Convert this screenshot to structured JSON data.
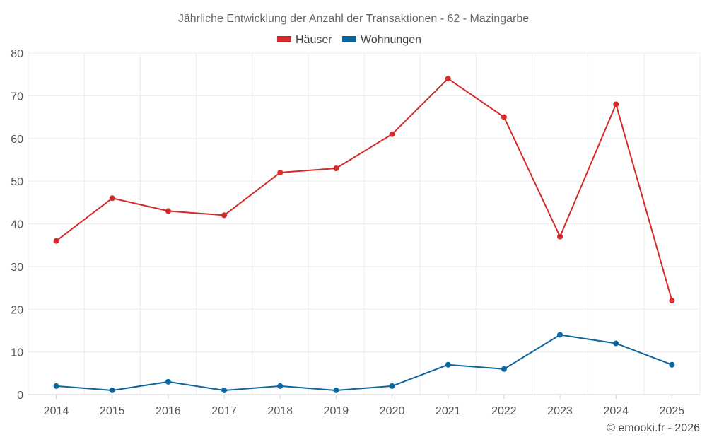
{
  "chart_data": {
    "type": "line",
    "title": "Jährliche Entwicklung der Anzahl der Transaktionen - 62 - Mazingarbe",
    "categories": [
      "2014",
      "2015",
      "2016",
      "2017",
      "2018",
      "2019",
      "2020",
      "2021",
      "2022",
      "2023",
      "2024",
      "2025"
    ],
    "series": [
      {
        "name": "Häuser",
        "color": "#d42a2a",
        "values": [
          36,
          46,
          43,
          42,
          52,
          53,
          61,
          74,
          65,
          37,
          68,
          22
        ]
      },
      {
        "name": "Wohnungen",
        "color": "#0b669e",
        "values": [
          2,
          1,
          3,
          1,
          2,
          1,
          2,
          7,
          6,
          14,
          12,
          7
        ]
      }
    ],
    "ylim": [
      0,
      80
    ],
    "yticks": [
      0,
      10,
      20,
      30,
      40,
      50,
      60,
      70,
      80
    ],
    "xlabel": "",
    "ylabel": "",
    "grid": true,
    "legend_position": "top-center"
  },
  "credit": "© emooki.fr - 2026"
}
